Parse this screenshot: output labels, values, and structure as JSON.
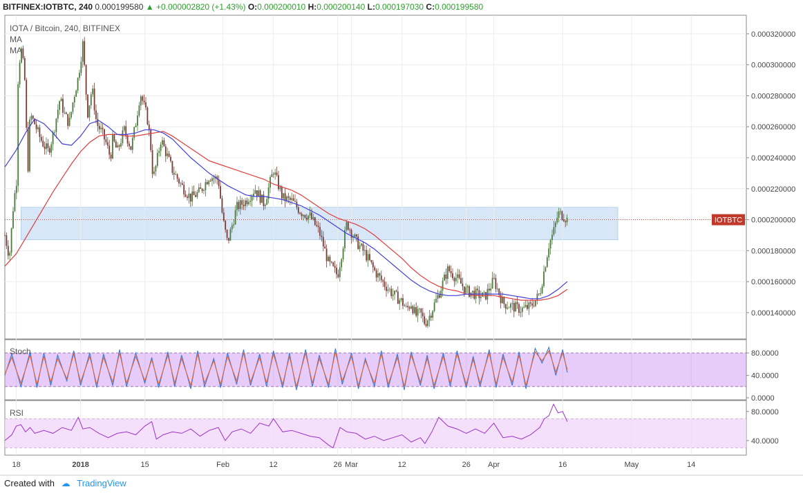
{
  "header": {
    "symbol": "BITFINEX:IOTBTC, 240",
    "last": "0.000199580",
    "change": "+0.000002820 (+1.43%)",
    "o_label": "O:",
    "o": "0.000200010",
    "h_label": "H:",
    "h": "0.000200140",
    "l_label": "L:",
    "l": "0.000197030",
    "c_label": "C:",
    "c": "0.000199580"
  },
  "footer": {
    "created_with": "Created with",
    "brand": "TradingView"
  },
  "chart_data": {
    "type": "line",
    "title": "IOTA / Bitcoin, 240, BITFINEX",
    "legend": [
      "MA",
      "MA"
    ],
    "price_label": "IOTBTC",
    "price_label_value": 0.0002,
    "colors": {
      "candle_up": "#4d7a3c",
      "candle_down": "#7a3a36",
      "ma_fast": "#3f3fd8",
      "ma_slow": "#e03c3c",
      "band": "#b7d3f0",
      "price_label_bg": "#c0392b",
      "stoch_fill": "#c98cf0",
      "rsi_fill": "#f2d8fb"
    },
    "ylim": [
      0.000123,
      0.000332
    ],
    "y_ticks": [
      "0.000320000",
      "0.000300000",
      "0.000280000",
      "0.000260000",
      "0.000240000",
      "0.000220000",
      "0.000200000",
      "0.000180000",
      "0.000160000",
      "0.000140000"
    ],
    "y_tick_values": [
      0.00032,
      0.0003,
      0.00028,
      0.00026,
      0.00024,
      0.00022,
      0.0002,
      0.00018,
      0.00016,
      0.00014
    ],
    "x_ticks": [
      "18",
      "2018",
      "15",
      "Feb",
      "12",
      "26",
      "Mar",
      "12",
      "26",
      "Apr",
      "16",
      "May",
      "14"
    ],
    "x_tick_days": [
      -14,
      0,
      14,
      31,
      42,
      56,
      59,
      70,
      84,
      90,
      105,
      120,
      133
    ],
    "x_range_days": [
      -16.5,
      145
    ],
    "resistance_band": {
      "from": 0.000187,
      "to": 0.000208,
      "x_start_days": -13,
      "x_end_days": 117
    },
    "price": {
      "days": [
        -16.5,
        -15.5,
        -14.5,
        -14,
        -13.6,
        -13,
        -12.2,
        -11.5,
        -11,
        -10,
        -9,
        -8,
        -7,
        -6,
        -4.5,
        -3.5,
        -2.5,
        -1.5,
        -0.5,
        0.5,
        1.5,
        2.5,
        3.5,
        4.5,
        5.5,
        6.5,
        7,
        8,
        9.5,
        11,
        12,
        13,
        14.5,
        15.2,
        15.8,
        16.5,
        17.5,
        18.5,
        20,
        22,
        24,
        26,
        28,
        30,
        31,
        32,
        34,
        36,
        38,
        40,
        42,
        44,
        46,
        48,
        50,
        52,
        54,
        56,
        58,
        60,
        62,
        64,
        66,
        68,
        70,
        71,
        72,
        73,
        74,
        75,
        76,
        78,
        80,
        82,
        84,
        86,
        88,
        90,
        92,
        94,
        96,
        98,
        100,
        101,
        102,
        103,
        104,
        105,
        106
      ],
      "values": [
        0.00019,
        0.000176,
        0.000215,
        0.00022,
        0.000292,
        0.000312,
        0.000293,
        0.00023,
        0.000268,
        0.000262,
        0.000254,
        0.000248,
        0.000244,
        0.000255,
        0.000278,
        0.000268,
        0.000262,
        0.000279,
        0.000292,
        0.000314,
        0.000268,
        0.000285,
        0.000262,
        0.000257,
        0.00025,
        0.00024,
        0.000252,
        0.000244,
        0.000258,
        0.000246,
        0.000262,
        0.000282,
        0.000266,
        0.00025,
        0.000226,
        0.000236,
        0.000252,
        0.000244,
        0.000232,
        0.000222,
        0.000214,
        0.000218,
        0.000228,
        0.000226,
        0.0002,
        0.000185,
        0.000208,
        0.000212,
        0.00022,
        0.00021,
        0.000232,
        0.000214,
        0.000212,
        0.000205,
        0.000202,
        0.000192,
        0.000172,
        0.000164,
        0.000198,
        0.000186,
        0.000178,
        0.000167,
        0.000159,
        0.000152,
        0.000147,
        0.000142,
        0.000146,
        0.000138,
        0.00014,
        0.000133,
        0.000138,
        0.000152,
        0.000168,
        0.000162,
        0.000154,
        0.000152,
        0.00015,
        0.000161,
        0.000146,
        0.000144,
        0.000142,
        0.000144,
        0.000152,
        0.000168,
        0.000184,
        0.000192,
        0.000204,
        0.000203,
        0.0002
      ]
    },
    "ma_fast": {
      "days": [
        -16.5,
        -14,
        -12,
        -10,
        -8,
        -6,
        -4,
        -2,
        0,
        2,
        4,
        6,
        8,
        10,
        12,
        14,
        16,
        18,
        20,
        22,
        24,
        26,
        28,
        30,
        32,
        34,
        36,
        38,
        40,
        42,
        44,
        46,
        48,
        50,
        52,
        54,
        56,
        58,
        60,
        62,
        64,
        66,
        68,
        70,
        72,
        74,
        76,
        78,
        80,
        82,
        84,
        86,
        88,
        90,
        92,
        94,
        96,
        98,
        100,
        102,
        104,
        106
      ],
      "values": [
        0.000234,
        0.000245,
        0.000256,
        0.000265,
        0.000262,
        0.000256,
        0.000249,
        0.000248,
        0.000254,
        0.000262,
        0.000264,
        0.00026,
        0.000255,
        0.000255,
        0.000256,
        0.000258,
        0.000258,
        0.000256,
        0.000252,
        0.000246,
        0.00024,
        0.000235,
        0.00023,
        0.000226,
        0.000222,
        0.000219,
        0.000216,
        0.000215,
        0.000215,
        0.000214,
        0.000213,
        0.000211,
        0.000209,
        0.000206,
        0.000203,
        0.000199,
        0.000195,
        0.000191,
        0.000188,
        0.000185,
        0.000181,
        0.000176,
        0.000171,
        0.000166,
        0.000161,
        0.000157,
        0.000154,
        0.000152,
        0.000151,
        0.000151,
        0.000152,
        0.000152,
        0.000152,
        0.000152,
        0.000152,
        0.000151,
        0.00015,
        0.000149,
        0.000149,
        0.000151,
        0.000155,
        0.00016
      ]
    },
    "ma_slow": {
      "days": [
        -16.5,
        -14,
        -12,
        -10,
        -8,
        -6,
        -4,
        -2,
        0,
        2,
        4,
        6,
        8,
        10,
        12,
        14,
        16,
        18,
        20,
        22,
        24,
        26,
        28,
        30,
        32,
        34,
        36,
        38,
        40,
        42,
        44,
        46,
        48,
        50,
        52,
        54,
        56,
        58,
        60,
        62,
        64,
        66,
        68,
        70,
        72,
        74,
        76,
        78,
        80,
        82,
        84,
        86,
        88,
        90,
        92,
        94,
        96,
        98,
        100,
        102,
        104,
        106
      ],
      "values": [
        0.00017,
        0.000178,
        0.000188,
        0.000198,
        0.000208,
        0.000218,
        0.000227,
        0.000236,
        0.000244,
        0.00025,
        0.000254,
        0.000255,
        0.000255,
        0.000254,
        0.000254,
        0.000255,
        0.000256,
        0.000257,
        0.000254,
        0.00025,
        0.000246,
        0.000242,
        0.000238,
        0.000236,
        0.000234,
        0.000232,
        0.00023,
        0.000228,
        0.000226,
        0.000223,
        0.000221,
        0.000219,
        0.000216,
        0.000212,
        0.000208,
        0.000204,
        0.000201,
        0.000199,
        0.000197,
        0.000194,
        0.00019,
        0.000185,
        0.00018,
        0.000175,
        0.000169,
        0.000164,
        0.00016,
        0.000157,
        0.000155,
        0.000154,
        0.000152,
        0.000151,
        0.000151,
        0.000151,
        0.00015,
        0.000149,
        0.000148,
        0.000148,
        0.000148,
        0.000149,
        0.000151,
        0.000155
      ]
    },
    "stoch": {
      "label": "Stoch",
      "ylim": [
        0,
        100
      ],
      "ticks": [
        "80.0000",
        "40.0000",
        "0.0000"
      ],
      "tick_values": [
        80,
        40,
        0
      ],
      "band": [
        20,
        80
      ],
      "days": [
        -16.5,
        -15,
        -13,
        -11,
        -9.5,
        -8,
        -6.5,
        -5,
        -3,
        -1.5,
        0,
        2,
        3.5,
        5,
        7,
        8.5,
        10,
        12,
        14,
        15.5,
        17,
        19,
        20.5,
        22,
        24,
        25.5,
        27,
        29,
        30.5,
        32,
        34,
        35.5,
        37,
        39,
        40.5,
        42,
        44,
        45.5,
        47,
        49,
        50.5,
        52,
        54,
        55.5,
        57,
        59,
        60.5,
        62,
        64,
        65.5,
        67,
        69,
        70.5,
        72,
        74,
        75.5,
        77,
        79,
        80.5,
        82,
        84,
        85.5,
        87,
        89,
        90.5,
        92,
        94,
        95.5,
        97,
        99,
        100.5,
        102,
        103.5,
        105,
        106
      ],
      "values": [
        40,
        78,
        20,
        82,
        18,
        80,
        22,
        76,
        30,
        84,
        22,
        80,
        18,
        78,
        22,
        86,
        20,
        80,
        26,
        72,
        18,
        82,
        20,
        76,
        16,
        84,
        20,
        70,
        18,
        80,
        24,
        86,
        22,
        78,
        20,
        84,
        18,
        80,
        14,
        86,
        20,
        76,
        18,
        88,
        24,
        80,
        16,
        70,
        20,
        84,
        18,
        78,
        14,
        82,
        22,
        76,
        16,
        80,
        20,
        84,
        18,
        74,
        20,
        86,
        18,
        78,
        22,
        82,
        16,
        88,
        62,
        90,
        40,
        86,
        45
      ],
      "smooth_values": [
        42,
        72,
        26,
        76,
        24,
        74,
        28,
        70,
        34,
        78,
        28,
        74,
        24,
        72,
        28,
        80,
        26,
        74,
        30,
        68,
        24,
        76,
        26,
        70,
        22,
        78,
        26,
        66,
        24,
        74,
        30,
        80,
        28,
        72,
        26,
        78,
        24,
        74,
        20,
        80,
        26,
        70,
        24,
        82,
        30,
        74,
        22,
        66,
        26,
        78,
        24,
        72,
        20,
        76,
        28,
        70,
        22,
        74,
        26,
        78,
        24,
        68,
        26,
        80,
        24,
        72,
        28,
        76,
        22,
        82,
        66,
        84,
        46,
        80,
        50
      ]
    },
    "rsi": {
      "label": "RSI",
      "ylim": [
        20,
        95
      ],
      "ticks": [
        "80.0000",
        "40.0000"
      ],
      "tick_values": [
        80,
        40
      ],
      "band": [
        30,
        70
      ],
      "days": [
        -16.5,
        -15,
        -14,
        -13,
        -12,
        -11,
        -10,
        -8,
        -6,
        -4,
        -2,
        -0.5,
        0.5,
        2,
        4,
        6,
        8,
        10,
        12,
        14,
        15.5,
        16.5,
        18,
        20,
        22,
        24,
        26,
        28,
        30,
        31.5,
        33,
        35,
        37,
        39,
        41,
        42,
        44,
        46,
        48,
        50,
        52,
        54,
        55,
        56.5,
        58,
        60,
        62,
        64,
        66,
        68,
        70,
        72,
        74,
        75,
        76.5,
        78,
        80,
        82,
        84,
        86,
        88,
        90,
        92,
        94,
        96,
        98,
        100,
        101,
        102,
        103,
        104,
        105,
        106
      ],
      "values": [
        40,
        48,
        60,
        62,
        52,
        58,
        50,
        54,
        50,
        58,
        54,
        72,
        56,
        58,
        50,
        44,
        50,
        52,
        48,
        60,
        66,
        42,
        48,
        52,
        50,
        56,
        46,
        54,
        58,
        40,
        52,
        56,
        50,
        64,
        60,
        70,
        52,
        54,
        50,
        46,
        44,
        34,
        30,
        58,
        52,
        50,
        42,
        46,
        40,
        44,
        48,
        38,
        44,
        36,
        52,
        72,
        60,
        56,
        50,
        56,
        50,
        64,
        44,
        46,
        42,
        48,
        58,
        70,
        74,
        90,
        78,
        80,
        66
      ]
    }
  }
}
